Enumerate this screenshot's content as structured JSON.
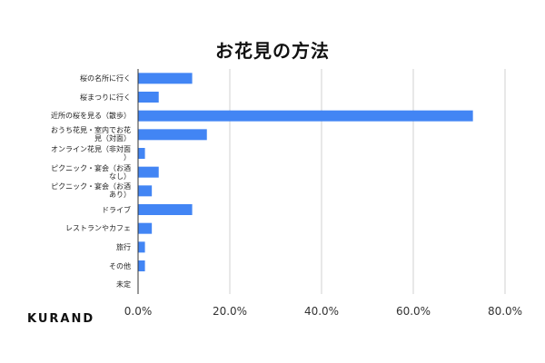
{
  "brand": "KURAND",
  "colors": {
    "bar": "#4285F4",
    "grid": "#d0d0d0",
    "axis": "#333333"
  },
  "chart_data": {
    "type": "bar",
    "orientation": "horizontal",
    "title": "お花見の方法",
    "categories": [
      "桜の名所に行く",
      "桜まつりに行く",
      "近所の桜を見る（散歩）",
      "おうち花見・室内でお花\n見（対面）",
      "オンライン花見（非対面\n）",
      "ピクニック・宴会（お酒\nなし）",
      "ピクニック・宴会（お酒\nあり）",
      "ドライブ",
      "レストランやカフェ",
      "旅行",
      "その他",
      "未定"
    ],
    "values": [
      11.8,
      4.5,
      73.0,
      15.0,
      1.5,
      4.5,
      3.0,
      11.8,
      3.0,
      1.5,
      1.5,
      0
    ],
    "x_ticks": [
      "0.0%",
      "20.0%",
      "40.0%",
      "60.0%",
      "80.0%"
    ],
    "xlim": [
      0,
      80
    ],
    "grid": true,
    "legend": "none"
  }
}
